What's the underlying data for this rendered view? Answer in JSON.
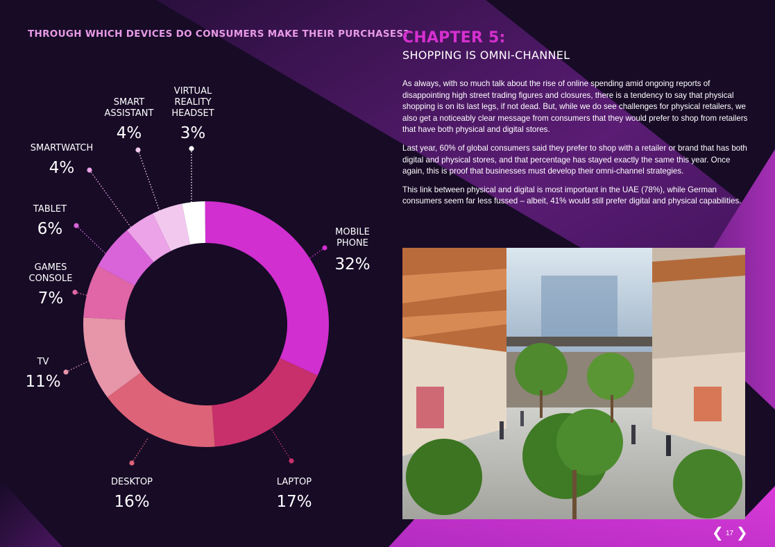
{
  "chart_title": "THROUGH WHICH DEVICES DO CONSUMERS MAKE THEIR PURCHASES?",
  "chapter": {
    "number": "CHAPTER 5:",
    "title": "SHOPPING IS OMNI-CHANNEL",
    "paragraphs": [
      "As always, with so much talk about the rise of online spending amid ongoing reports of disappointing high street trading figures and closures, there is a tendency to say that physical shopping is on its last legs, if not dead. But, while we do see challenges for physical retailers, we also get a noticeably clear message from consumers that they would prefer to shop from retailers that have both physical and digital stores.",
      "Last year, 60% of global consumers said they prefer to shop with a retailer or brand that has both digital and physical stores, and that percentage has stayed exactly the same this year. Once again, this is proof that businesses must develop their omni-channel strategies.",
      "This link between physical and digital is most important in the UAE (78%), while German consumers seem far less fussed – albeit, 41% would still prefer digital and physical capabilities."
    ]
  },
  "chart_data": {
    "type": "pie",
    "title": "THROUGH WHICH DEVICES DO CONSUMERS MAKE THEIR PURCHASES?",
    "unit": "%",
    "slices": [
      {
        "label": "MOBILE PHONE",
        "value": 32,
        "value_label": "32%",
        "color": "#d12fcf"
      },
      {
        "label": "LAPTOP",
        "value": 17,
        "value_label": "17%",
        "color": "#c8306b"
      },
      {
        "label": "DESKTOP",
        "value": 16,
        "value_label": "16%",
        "color": "#dd6378"
      },
      {
        "label": "TV",
        "value": 11,
        "value_label": "11%",
        "color": "#e795a9"
      },
      {
        "label": "GAMES CONSOLE",
        "value": 7,
        "value_label": "7%",
        "color": "#e066a7"
      },
      {
        "label": "TABLET",
        "value": 6,
        "value_label": "6%",
        "color": "#d964d9"
      },
      {
        "label": "SMARTWATCH",
        "value": 4,
        "value_label": "4%",
        "color": "#eda3e8"
      },
      {
        "label": "SMART ASSISTANT",
        "value": 4,
        "value_label": "4%",
        "color": "#f3c8ef"
      },
      {
        "label": "VIRTUAL REALITY HEADSET",
        "value": 3,
        "value_label": "3%",
        "color": "#ffffff"
      }
    ]
  },
  "page_number": "17",
  "nav": {
    "prev_icon": "chevron-left-icon",
    "next_icon": "chevron-right-icon"
  },
  "colors": {
    "background": "#170b26",
    "accent": "#d530cf",
    "title_pink": "#e79ae6"
  }
}
